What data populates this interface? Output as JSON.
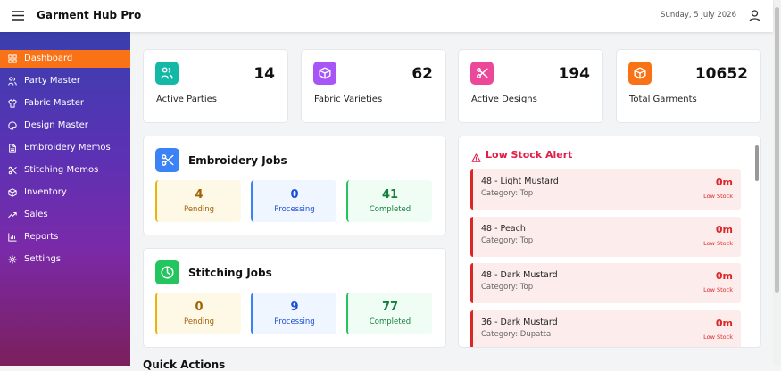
{
  "header": {
    "title": "Garment Hub Pro",
    "date": "Sunday, 5 July 2026"
  },
  "sidebar": {
    "items": [
      "Dashboard",
      "Party Master",
      "Fabric Master",
      "Design Master",
      "Embroidery Memos",
      "Stitching Memos",
      "Inventory",
      "Sales",
      "Reports",
      "Settings"
    ]
  },
  "stats": [
    {
      "value": "14",
      "label": "Active Parties"
    },
    {
      "value": "62",
      "label": "Fabric Varieties"
    },
    {
      "value": "194",
      "label": "Active Designs"
    },
    {
      "value": "10652",
      "label": "Total Garments"
    }
  ],
  "jobs": [
    {
      "title": "Embroidery Jobs",
      "counts": [
        {
          "value": "4",
          "label": "Pending"
        },
        {
          "value": "0",
          "label": "Processing"
        },
        {
          "value": "41",
          "label": "Completed"
        }
      ]
    },
    {
      "title": "Stitching Jobs",
      "counts": [
        {
          "value": "0",
          "label": "Pending"
        },
        {
          "value": "9",
          "label": "Processing"
        },
        {
          "value": "77",
          "label": "Completed"
        }
      ]
    }
  ],
  "low_stock": {
    "title": "Low Stock Alert",
    "items": [
      {
        "name": "48 - Light Mustard",
        "category": "Category: Top",
        "qty": "0m",
        "status": "Low Stock"
      },
      {
        "name": "48 - Peach",
        "category": "Category: Top",
        "qty": "0m",
        "status": "Low Stock"
      },
      {
        "name": "48 - Dark Mustard",
        "category": "Category: Top",
        "qty": "0m",
        "status": "Low Stock"
      },
      {
        "name": "36 - Dark Mustard",
        "category": "Category: Dupatta",
        "qty": "0m",
        "status": "Low Stock"
      }
    ]
  },
  "quick_actions": {
    "title": "Quick Actions"
  }
}
